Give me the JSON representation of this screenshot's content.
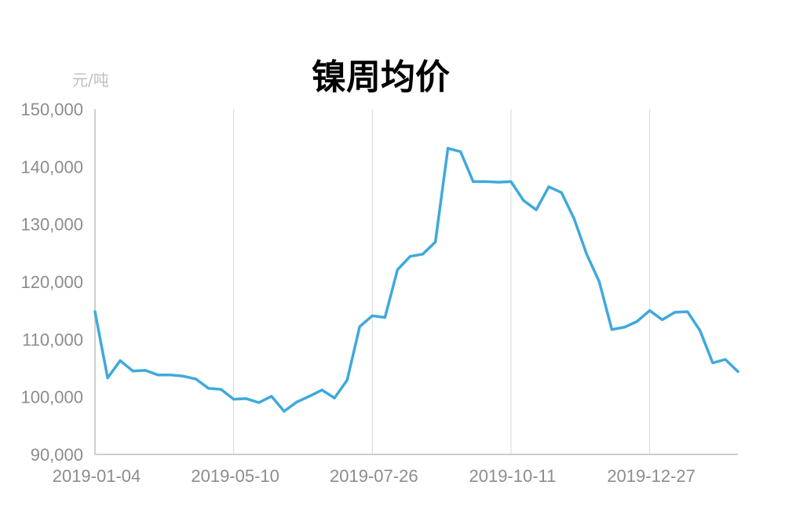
{
  "chart_data": {
    "type": "line",
    "title": "镍周均价",
    "ylabel": "元/吨",
    "xlabel": "",
    "ylim": [
      90000,
      150000
    ],
    "yticks": [
      90000,
      100000,
      110000,
      120000,
      130000,
      140000,
      150000
    ],
    "ytick_labels": [
      "90,000",
      "100,000",
      "110,000",
      "120,000",
      "130,000",
      "140,000",
      "150,000"
    ],
    "xtick_labels": [
      "2019-01-04",
      "2019-05-10",
      "2019-07-26",
      "2019-10-11",
      "2019-12-27"
    ],
    "xtick_index": [
      0,
      11,
      22,
      33,
      44
    ],
    "grid": "vertical",
    "colors": {
      "line": "#3fa9dc",
      "grid": "#d9d9d9",
      "axis": "#bfbfbf"
    },
    "series": [
      {
        "values": [
          114800,
          103300,
          106300,
          104500,
          104600,
          103800,
          103800,
          103600,
          103100,
          101500,
          101300,
          99600,
          99700,
          99000,
          100100,
          97500,
          99100,
          100100,
          101200,
          99800,
          102900,
          112200,
          114100,
          113800,
          122100,
          124400,
          124800,
          126900,
          143200,
          142600,
          137400,
          137400,
          137300,
          137400,
          134100,
          132500,
          136500,
          135500,
          131000,
          124800,
          120000,
          111700,
          112100,
          113100,
          115000,
          113400,
          114700,
          114800,
          111500,
          105900,
          106500,
          104400
        ]
      }
    ]
  }
}
